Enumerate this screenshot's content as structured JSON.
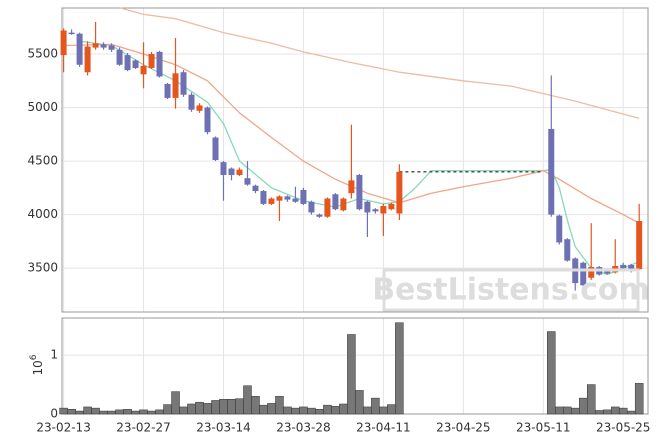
{
  "chart_data": {
    "type": "candlestick",
    "watermark": "BestListens.com",
    "xlim": [
      -0.2,
      73.1
    ],
    "xticks": [
      {
        "value": 0,
        "label": "23-02-13"
      },
      {
        "value": 10,
        "label": "23-02-27"
      },
      {
        "value": 20,
        "label": "23-03-14"
      },
      {
        "value": 30,
        "label": "23-03-28"
      },
      {
        "value": 40,
        "label": "23-04-11"
      },
      {
        "value": 50,
        "label": "23-04-25"
      },
      {
        "value": 60,
        "label": "23-05-11"
      },
      {
        "value": 70,
        "label": "23-05-25"
      }
    ],
    "ylim": [
      3090,
      5930
    ],
    "yticks": [
      3500,
      4000,
      4500,
      5000,
      5500
    ],
    "grid": true,
    "up_color": "#e4561e",
    "down_color": "#6e70b4",
    "x": [
      0,
      1,
      2,
      3,
      4,
      5,
      6,
      7,
      8,
      9,
      10,
      11,
      12,
      13,
      14,
      15,
      16,
      17,
      18,
      19,
      20,
      21,
      22,
      23,
      24,
      25,
      26,
      27,
      28,
      29,
      30,
      31,
      32,
      33,
      34,
      35,
      36,
      37,
      38,
      39,
      40,
      41,
      42,
      61,
      62,
      63,
      64,
      65,
      66,
      67,
      68,
      69,
      70,
      71,
      72
    ],
    "open": [
      5490,
      5700,
      5690,
      5330,
      5560,
      5590,
      5580,
      5540,
      5490,
      5440,
      5310,
      5370,
      5520,
      5220,
      5090,
      5330,
      5120,
      4970,
      5000,
      4720,
      4490,
      4430,
      4370,
      4340,
      4270,
      4220,
      4100,
      4130,
      4170,
      4150,
      4230,
      4120,
      4000,
      3980,
      4190,
      4040,
      4200,
      4370,
      4120,
      4050,
      4010,
      4050,
      4010,
      4800,
      3990,
      3770,
      3590,
      3550,
      3410,
      3510,
      3480,
      3460,
      3530,
      3530,
      3490
    ],
    "high": [
      5740,
      5730,
      5700,
      5620,
      5800,
      5610,
      5600,
      5560,
      5510,
      5450,
      5610,
      5520,
      5530,
      5230,
      5650,
      5350,
      5140,
      5040,
      5010,
      4730,
      4500,
      4440,
      4440,
      4500,
      4280,
      4230,
      4160,
      4180,
      4180,
      4260,
      4250,
      4130,
      4010,
      4160,
      4200,
      4160,
      4840,
      4380,
      4130,
      4060,
      4100,
      4110,
      4470,
      5300,
      4000,
      3780,
      3600,
      3560,
      3920,
      3520,
      3490,
      3770,
      3550,
      3540,
      4100
    ],
    "low": [
      5330,
      5680,
      5380,
      5300,
      5540,
      5540,
      5520,
      5390,
      5340,
      5360,
      5180,
      5360,
      5280,
      5080,
      4990,
      5100,
      4960,
      4950,
      4750,
      4500,
      4130,
      4320,
      4360,
      4270,
      4200,
      4090,
      4090,
      3940,
      4120,
      4110,
      4090,
      4000,
      3970,
      3970,
      4040,
      4030,
      4150,
      4040,
      3790,
      4010,
      3800,
      4040,
      3950,
      3980,
      3720,
      3560,
      3290,
      3330,
      3390,
      3430,
      3440,
      3450,
      3490,
      3460,
      3480
    ],
    "close": [
      5720,
      5690,
      5400,
      5570,
      5600,
      5560,
      5540,
      5400,
      5350,
      5370,
      5390,
      5500,
      5290,
      5090,
      5320,
      5120,
      4980,
      5020,
      4770,
      4510,
      4370,
      4370,
      4420,
      4280,
      4220,
      4100,
      4150,
      4170,
      4140,
      4120,
      4100,
      4020,
      3980,
      4150,
      4050,
      4150,
      4320,
      4050,
      4020,
      4030,
      4080,
      4100,
      4400,
      4000,
      3740,
      3570,
      3360,
      3340,
      3510,
      3440,
      3450,
      3520,
      3500,
      3470,
      3940
    ],
    "gap_line": {
      "x": [
        42,
        60
      ],
      "y": [
        4400,
        4400
      ],
      "color": "#444"
    },
    "moving_averages": [
      {
        "color": "#86dbb6",
        "x": [
          2,
          6,
          10,
          14,
          18,
          20,
          22,
          26,
          30,
          34,
          37,
          40,
          42,
          44,
          46,
          60,
          61,
          62,
          63,
          64,
          66,
          68,
          72
        ],
        "values": [
          5620,
          5580,
          5400,
          5250,
          5050,
          4850,
          4500,
          4250,
          4130,
          4070,
          4150,
          4100,
          4120,
          4250,
          4410,
          4410,
          4420,
          4250,
          3950,
          3700,
          3500,
          3440,
          3560
        ]
      },
      {
        "color": "#f1a585",
        "x": [
          0,
          6,
          10,
          14,
          18,
          22,
          26,
          30,
          34,
          38,
          42,
          46,
          50,
          56,
          60,
          62,
          66,
          70,
          72
        ],
        "values": [
          5580,
          5590,
          5500,
          5400,
          5250,
          4950,
          4720,
          4500,
          4330,
          4200,
          4110,
          4200,
          4260,
          4340,
          4410,
          4330,
          4150,
          4000,
          3920
        ]
      },
      {
        "color": "#ebbca6",
        "x": [
          7.1,
          10,
          14,
          20,
          26,
          30,
          36,
          42,
          50,
          56,
          60,
          64,
          68,
          72
        ],
        "values": [
          5930,
          5870,
          5830,
          5700,
          5600,
          5520,
          5420,
          5330,
          5250,
          5200,
          5130,
          5060,
          4980,
          4900
        ]
      }
    ],
    "volume": {
      "color": "#777",
      "ylim": [
        0,
        1.63
      ],
      "yticks": [
        0,
        1
      ],
      "axis_label": {
        "base": "10",
        "exponent": "6"
      },
      "values": [
        0.1,
        0.08,
        0.05,
        0.12,
        0.1,
        0.05,
        0.05,
        0.07,
        0.08,
        0.05,
        0.07,
        0.05,
        0.07,
        0.16,
        0.38,
        0.12,
        0.17,
        0.2,
        0.18,
        0.23,
        0.25,
        0.25,
        0.26,
        0.48,
        0.3,
        0.15,
        0.18,
        0.3,
        0.12,
        0.1,
        0.12,
        0.1,
        0.08,
        0.15,
        0.13,
        0.17,
        1.35,
        0.4,
        0.12,
        0.27,
        0.12,
        0.16,
        1.55,
        1.4,
        0.12,
        0.12,
        0.1,
        0.27,
        0.5,
        0.06,
        0.07,
        0.12,
        0.1,
        0.05,
        0.52
      ]
    }
  }
}
